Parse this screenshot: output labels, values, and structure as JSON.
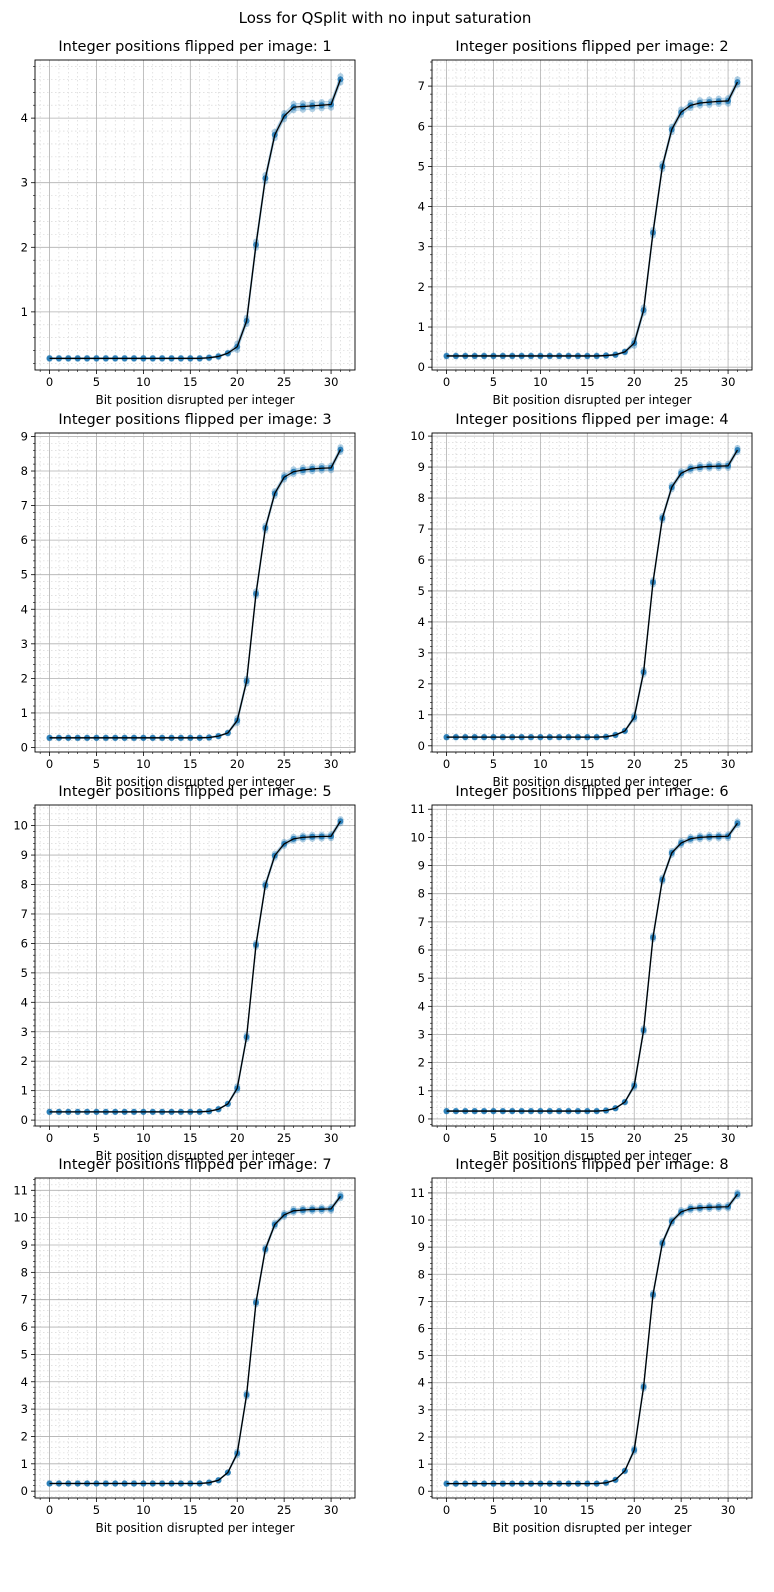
{
  "figure": {
    "suptitle": "Loss for QSplit with no input saturation"
  },
  "colors": {
    "marker": "#1f77b4",
    "mean_line": "#000000",
    "major_grid": "#b0b0b0",
    "minor_grid": "#d0d0d0"
  },
  "chart_data": [
    {
      "type": "line",
      "title": "Integer positions flipped per image: 1",
      "xlabel": "Bit position disrupted per integer",
      "ylabel": "",
      "xlim": [
        -1.55,
        32.55
      ],
      "ylim": [
        0.1,
        4.9
      ],
      "xticks": [
        0,
        5,
        10,
        15,
        20,
        25,
        30
      ],
      "yticks": [
        1,
        2,
        3,
        4
      ],
      "grid": true,
      "x": [
        0,
        1,
        2,
        3,
        4,
        5,
        6,
        7,
        8,
        9,
        10,
        11,
        12,
        13,
        14,
        15,
        16,
        17,
        18,
        19,
        20,
        21,
        22,
        23,
        24,
        25,
        26,
        27,
        28,
        29,
        30,
        31
      ],
      "series": [
        {
          "values": [
            0.28,
            0.28,
            0.28,
            0.28,
            0.28,
            0.28,
            0.28,
            0.28,
            0.28,
            0.28,
            0.28,
            0.28,
            0.28,
            0.28,
            0.28,
            0.28,
            0.28,
            0.29,
            0.31,
            0.36,
            0.46,
            0.86,
            2.04,
            3.07,
            3.74,
            4.03,
            4.17,
            4.18,
            4.19,
            4.2,
            4.21,
            4.6
          ],
          "spread": 0.05
        }
      ]
    },
    {
      "type": "line",
      "title": "Integer positions flipped per image: 2",
      "xlabel": "Bit position disrupted per integer",
      "ylabel": "",
      "xlim": [
        -1.55,
        32.55
      ],
      "ylim": [
        -0.07,
        7.65
      ],
      "xticks": [
        0,
        5,
        10,
        15,
        20,
        25,
        30
      ],
      "yticks": [
        0,
        1,
        2,
        3,
        4,
        5,
        6,
        7
      ],
      "grid": true,
      "x": [
        0,
        1,
        2,
        3,
        4,
        5,
        6,
        7,
        8,
        9,
        10,
        11,
        12,
        13,
        14,
        15,
        16,
        17,
        18,
        19,
        20,
        21,
        22,
        23,
        24,
        25,
        26,
        27,
        28,
        29,
        30,
        31
      ],
      "series": [
        {
          "values": [
            0.28,
            0.28,
            0.28,
            0.28,
            0.28,
            0.28,
            0.28,
            0.28,
            0.28,
            0.28,
            0.28,
            0.28,
            0.28,
            0.28,
            0.28,
            0.28,
            0.28,
            0.29,
            0.31,
            0.38,
            0.6,
            1.42,
            3.35,
            5.0,
            5.92,
            6.35,
            6.52,
            6.58,
            6.6,
            6.62,
            6.63,
            7.1
          ],
          "spread": 0.07
        }
      ]
    },
    {
      "type": "line",
      "title": "Integer positions flipped per image: 3",
      "xlabel": "Bit position disrupted per integer",
      "ylabel": "",
      "xlim": [
        -1.55,
        32.55
      ],
      "ylim": [
        -0.13,
        9.1
      ],
      "xticks": [
        0,
        5,
        10,
        15,
        20,
        25,
        30
      ],
      "yticks": [
        0,
        1,
        2,
        3,
        4,
        5,
        6,
        7,
        8,
        9
      ],
      "grid": true,
      "x": [
        0,
        1,
        2,
        3,
        4,
        5,
        6,
        7,
        8,
        9,
        10,
        11,
        12,
        13,
        14,
        15,
        16,
        17,
        18,
        19,
        20,
        21,
        22,
        23,
        24,
        25,
        26,
        27,
        28,
        29,
        30,
        31
      ],
      "series": [
        {
          "values": [
            0.28,
            0.28,
            0.28,
            0.28,
            0.28,
            0.28,
            0.28,
            0.28,
            0.28,
            0.28,
            0.28,
            0.28,
            0.28,
            0.28,
            0.28,
            0.28,
            0.28,
            0.29,
            0.33,
            0.42,
            0.78,
            1.92,
            4.45,
            6.35,
            7.35,
            7.82,
            7.98,
            8.03,
            8.06,
            8.08,
            8.09,
            8.62
          ],
          "spread": 0.07
        }
      ]
    },
    {
      "type": "line",
      "title": "Integer positions flipped per image: 4",
      "xlabel": "Bit position disrupted per integer",
      "ylabel": "",
      "xlim": [
        -1.55,
        32.55
      ],
      "ylim": [
        -0.2,
        10.1
      ],
      "xticks": [
        0,
        5,
        10,
        15,
        20,
        25,
        30
      ],
      "yticks": [
        0,
        1,
        2,
        3,
        4,
        5,
        6,
        7,
        8,
        9,
        10
      ],
      "grid": true,
      "x": [
        0,
        1,
        2,
        3,
        4,
        5,
        6,
        7,
        8,
        9,
        10,
        11,
        12,
        13,
        14,
        15,
        16,
        17,
        18,
        19,
        20,
        21,
        22,
        23,
        24,
        25,
        26,
        27,
        28,
        29,
        30,
        31
      ],
      "series": [
        {
          "values": [
            0.28,
            0.28,
            0.28,
            0.28,
            0.28,
            0.28,
            0.28,
            0.28,
            0.28,
            0.28,
            0.28,
            0.28,
            0.28,
            0.28,
            0.28,
            0.28,
            0.28,
            0.29,
            0.35,
            0.48,
            0.92,
            2.38,
            5.28,
            7.35,
            8.35,
            8.8,
            8.95,
            9.0,
            9.02,
            9.03,
            9.04,
            9.55
          ],
          "spread": 0.07
        }
      ]
    },
    {
      "type": "line",
      "title": "Integer positions flipped per image: 5",
      "xlabel": "Bit position disrupted per integer",
      "ylabel": "",
      "xlim": [
        -1.55,
        32.55
      ],
      "ylim": [
        -0.2,
        10.7
      ],
      "xticks": [
        0,
        5,
        10,
        15,
        20,
        25,
        30
      ],
      "yticks": [
        0,
        1,
        2,
        3,
        4,
        5,
        6,
        7,
        8,
        9,
        10
      ],
      "grid": true,
      "x": [
        0,
        1,
        2,
        3,
        4,
        5,
        6,
        7,
        8,
        9,
        10,
        11,
        12,
        13,
        14,
        15,
        16,
        17,
        18,
        19,
        20,
        21,
        22,
        23,
        24,
        25,
        26,
        27,
        28,
        29,
        30,
        31
      ],
      "series": [
        {
          "values": [
            0.28,
            0.28,
            0.28,
            0.28,
            0.28,
            0.28,
            0.28,
            0.28,
            0.28,
            0.28,
            0.28,
            0.28,
            0.28,
            0.28,
            0.28,
            0.28,
            0.28,
            0.3,
            0.37,
            0.55,
            1.08,
            2.82,
            5.95,
            7.98,
            8.98,
            9.38,
            9.55,
            9.6,
            9.62,
            9.63,
            9.64,
            10.15
          ],
          "spread": 0.07
        }
      ]
    },
    {
      "type": "line",
      "title": "Integer positions flipped per image: 6",
      "xlabel": "Bit position disrupted per integer",
      "ylabel": "",
      "xlim": [
        -1.55,
        32.55
      ],
      "ylim": [
        -0.25,
        11.15
      ],
      "xticks": [
        0,
        5,
        10,
        15,
        20,
        25,
        30
      ],
      "yticks": [
        0,
        1,
        2,
        3,
        4,
        5,
        6,
        7,
        8,
        9,
        10,
        11
      ],
      "grid": true,
      "x": [
        0,
        1,
        2,
        3,
        4,
        5,
        6,
        7,
        8,
        9,
        10,
        11,
        12,
        13,
        14,
        15,
        16,
        17,
        18,
        19,
        20,
        21,
        22,
        23,
        24,
        25,
        26,
        27,
        28,
        29,
        30,
        31
      ],
      "series": [
        {
          "values": [
            0.28,
            0.28,
            0.28,
            0.28,
            0.28,
            0.28,
            0.28,
            0.28,
            0.28,
            0.28,
            0.28,
            0.28,
            0.28,
            0.28,
            0.28,
            0.28,
            0.28,
            0.3,
            0.38,
            0.6,
            1.18,
            3.15,
            6.45,
            8.5,
            9.45,
            9.8,
            9.95,
            10.0,
            10.02,
            10.03,
            10.04,
            10.5
          ],
          "spread": 0.07
        }
      ]
    },
    {
      "type": "line",
      "title": "Integer positions flipped per image: 7",
      "xlabel": "Bit position disrupted per integer",
      "ylabel": "",
      "xlim": [
        -1.55,
        32.55
      ],
      "ylim": [
        -0.25,
        11.45
      ],
      "xticks": [
        0,
        5,
        10,
        15,
        20,
        25,
        30
      ],
      "yticks": [
        0,
        1,
        2,
        3,
        4,
        5,
        6,
        7,
        8,
        9,
        10,
        11
      ],
      "grid": true,
      "x": [
        0,
        1,
        2,
        3,
        4,
        5,
        6,
        7,
        8,
        9,
        10,
        11,
        12,
        13,
        14,
        15,
        16,
        17,
        18,
        19,
        20,
        21,
        22,
        23,
        24,
        25,
        26,
        27,
        28,
        29,
        30,
        31
      ],
      "series": [
        {
          "values": [
            0.28,
            0.28,
            0.28,
            0.28,
            0.28,
            0.28,
            0.28,
            0.28,
            0.28,
            0.28,
            0.28,
            0.28,
            0.28,
            0.28,
            0.28,
            0.28,
            0.28,
            0.31,
            0.4,
            0.68,
            1.38,
            3.52,
            6.9,
            8.85,
            9.75,
            10.1,
            10.25,
            10.28,
            10.3,
            10.31,
            10.32,
            10.78
          ],
          "spread": 0.07
        }
      ]
    },
    {
      "type": "line",
      "title": "Integer positions flipped per image: 8",
      "xlabel": "Bit position disrupted per integer",
      "ylabel": "",
      "xlim": [
        -1.55,
        32.55
      ],
      "ylim": [
        -0.25,
        11.55
      ],
      "xticks": [
        0,
        5,
        10,
        15,
        20,
        25,
        30
      ],
      "yticks": [
        0,
        1,
        2,
        3,
        4,
        5,
        6,
        7,
        8,
        9,
        10,
        11
      ],
      "grid": true,
      "x": [
        0,
        1,
        2,
        3,
        4,
        5,
        6,
        7,
        8,
        9,
        10,
        11,
        12,
        13,
        14,
        15,
        16,
        17,
        18,
        19,
        20,
        21,
        22,
        23,
        24,
        25,
        26,
        27,
        28,
        29,
        30,
        31
      ],
      "series": [
        {
          "values": [
            0.28,
            0.28,
            0.28,
            0.28,
            0.28,
            0.28,
            0.28,
            0.28,
            0.28,
            0.28,
            0.28,
            0.28,
            0.28,
            0.28,
            0.28,
            0.28,
            0.28,
            0.31,
            0.42,
            0.75,
            1.52,
            3.85,
            7.25,
            9.15,
            9.95,
            10.3,
            10.42,
            10.45,
            10.47,
            10.48,
            10.49,
            10.95
          ],
          "spread": 0.07
        }
      ]
    }
  ]
}
